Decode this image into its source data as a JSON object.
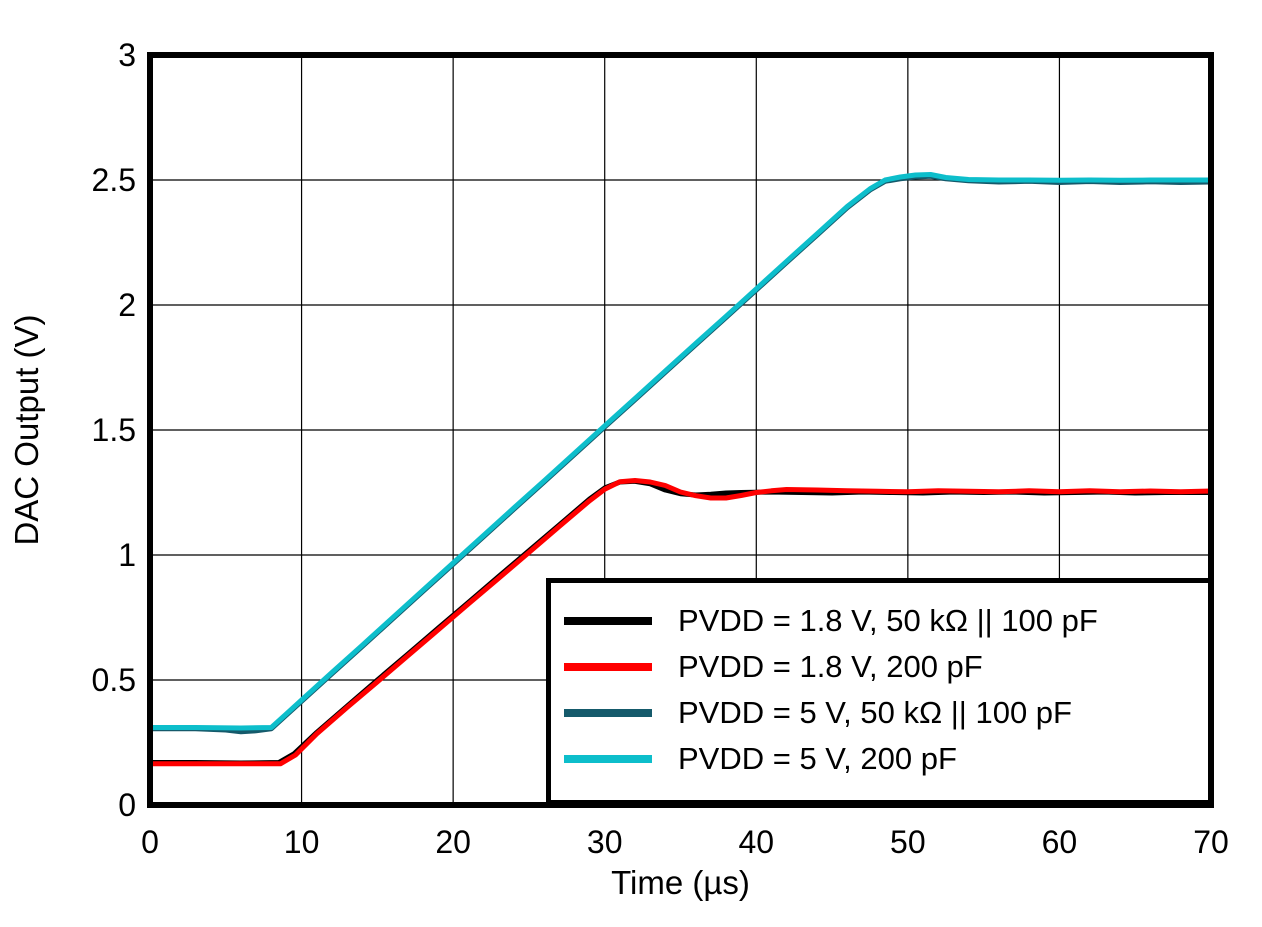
{
  "figure": {
    "background": "#ffffff",
    "frame_color": "#000000",
    "grid_color": "#000000"
  },
  "chart_data": {
    "type": "line",
    "title": "",
    "xlabel": "Time (µs)",
    "ylabel": "DAC Output (V)",
    "xlim": [
      0,
      70
    ],
    "ylim": [
      0,
      3
    ],
    "xticks": [
      0,
      10,
      20,
      30,
      40,
      50,
      60,
      70
    ],
    "xtick_labels": [
      "0",
      "10",
      "20",
      "30",
      "40",
      "50",
      "60",
      "70"
    ],
    "yticks": [
      0,
      0.5,
      1,
      1.5,
      2,
      2.5,
      3
    ],
    "ytick_labels": [
      "0",
      "0.5",
      "1",
      "1.5",
      "2",
      "2.5",
      "3"
    ],
    "grid": true,
    "legend_position": "inside-bottom-right",
    "series": [
      {
        "name": "PVDD = 1.8 V, 50 kΩ || 100 pF",
        "color": "#000000",
        "points": [
          [
            0,
            0.17
          ],
          [
            3,
            0.17
          ],
          [
            6,
            0.168
          ],
          [
            8.5,
            0.17
          ],
          [
            9.5,
            0.205
          ],
          [
            11,
            0.29
          ],
          [
            13,
            0.395
          ],
          [
            15,
            0.5
          ],
          [
            17,
            0.603
          ],
          [
            19,
            0.707
          ],
          [
            21,
            0.81
          ],
          [
            23,
            0.914
          ],
          [
            25,
            1.017
          ],
          [
            27,
            1.12
          ],
          [
            29,
            1.224
          ],
          [
            30,
            1.268
          ],
          [
            31,
            1.292
          ],
          [
            32,
            1.295
          ],
          [
            33,
            1.285
          ],
          [
            34,
            1.26
          ],
          [
            35,
            1.245
          ],
          [
            36,
            1.24
          ],
          [
            37,
            1.243
          ],
          [
            38,
            1.248
          ],
          [
            39,
            1.25
          ],
          [
            41,
            1.252
          ],
          [
            43,
            1.25
          ],
          [
            45,
            1.248
          ],
          [
            47,
            1.252
          ],
          [
            49,
            1.25
          ],
          [
            51,
            1.248
          ],
          [
            53,
            1.252
          ],
          [
            55,
            1.25
          ],
          [
            57,
            1.252
          ],
          [
            59,
            1.248
          ],
          [
            61,
            1.25
          ],
          [
            63,
            1.252
          ],
          [
            65,
            1.248
          ],
          [
            67,
            1.25
          ],
          [
            70,
            1.25
          ]
        ]
      },
      {
        "name": "PVDD = 1.8 V, 200 pF",
        "color": "#FF0000",
        "points": [
          [
            0,
            0.165
          ],
          [
            3,
            0.165
          ],
          [
            6,
            0.165
          ],
          [
            8.6,
            0.165
          ],
          [
            9.6,
            0.2
          ],
          [
            11,
            0.285
          ],
          [
            13,
            0.39
          ],
          [
            15,
            0.493
          ],
          [
            17,
            0.597
          ],
          [
            19,
            0.7
          ],
          [
            21,
            0.804
          ],
          [
            23,
            0.907
          ],
          [
            25,
            1.01
          ],
          [
            27,
            1.114
          ],
          [
            29,
            1.217
          ],
          [
            30,
            1.263
          ],
          [
            31,
            1.293
          ],
          [
            32,
            1.298
          ],
          [
            33,
            1.292
          ],
          [
            34,
            1.278
          ],
          [
            35,
            1.252
          ],
          [
            36,
            1.237
          ],
          [
            37,
            1.228
          ],
          [
            38,
            1.228
          ],
          [
            39,
            1.238
          ],
          [
            40,
            1.25
          ],
          [
            41,
            1.257
          ],
          [
            42,
            1.262
          ],
          [
            44,
            1.26
          ],
          [
            46,
            1.257
          ],
          [
            48,
            1.255
          ],
          [
            50,
            1.253
          ],
          [
            52,
            1.257
          ],
          [
            54,
            1.255
          ],
          [
            56,
            1.253
          ],
          [
            58,
            1.257
          ],
          [
            60,
            1.253
          ],
          [
            62,
            1.257
          ],
          [
            64,
            1.253
          ],
          [
            66,
            1.256
          ],
          [
            68,
            1.253
          ],
          [
            70,
            1.256
          ]
        ]
      },
      {
        "name": "PVDD = 5 V, 50 kΩ || 100 pF",
        "color": "#155A6B",
        "points": [
          [
            0,
            0.305
          ],
          [
            3,
            0.305
          ],
          [
            5,
            0.3
          ],
          [
            6,
            0.293
          ],
          [
            7,
            0.297
          ],
          [
            8,
            0.305
          ],
          [
            9,
            0.36
          ],
          [
            10,
            0.415
          ],
          [
            12,
            0.525
          ],
          [
            14,
            0.634
          ],
          [
            16,
            0.744
          ],
          [
            18,
            0.854
          ],
          [
            20,
            0.963
          ],
          [
            22,
            1.073
          ],
          [
            24,
            1.183
          ],
          [
            26,
            1.292
          ],
          [
            28,
            1.402
          ],
          [
            30,
            1.512
          ],
          [
            32,
            1.621
          ],
          [
            34,
            1.731
          ],
          [
            36,
            1.841
          ],
          [
            38,
            1.95
          ],
          [
            40,
            2.06
          ],
          [
            42,
            2.17
          ],
          [
            44,
            2.279
          ],
          [
            46,
            2.389
          ],
          [
            47.5,
            2.46
          ],
          [
            48.5,
            2.495
          ],
          [
            49.5,
            2.505
          ],
          [
            50.5,
            2.512
          ],
          [
            51.5,
            2.515
          ],
          [
            52.5,
            2.505
          ],
          [
            54,
            2.497
          ],
          [
            56,
            2.492
          ],
          [
            58,
            2.495
          ],
          [
            60,
            2.49
          ],
          [
            62,
            2.494
          ],
          [
            64,
            2.49
          ],
          [
            66,
            2.493
          ],
          [
            68,
            2.49
          ],
          [
            70,
            2.492
          ]
        ]
      },
      {
        "name": "PVDD = 5 V, 200 pF",
        "color": "#0DBECB",
        "points": [
          [
            0,
            0.31
          ],
          [
            3,
            0.31
          ],
          [
            6,
            0.308
          ],
          [
            8,
            0.31
          ],
          [
            9,
            0.365
          ],
          [
            10,
            0.42
          ],
          [
            12,
            0.53
          ],
          [
            14,
            0.639
          ],
          [
            16,
            0.749
          ],
          [
            18,
            0.859
          ],
          [
            20,
            0.968
          ],
          [
            22,
            1.078
          ],
          [
            24,
            1.188
          ],
          [
            26,
            1.297
          ],
          [
            28,
            1.407
          ],
          [
            30,
            1.517
          ],
          [
            32,
            1.626
          ],
          [
            34,
            1.736
          ],
          [
            36,
            1.846
          ],
          [
            38,
            1.955
          ],
          [
            40,
            2.065
          ],
          [
            42,
            2.175
          ],
          [
            44,
            2.284
          ],
          [
            46,
            2.394
          ],
          [
            47.5,
            2.465
          ],
          [
            48.5,
            2.5
          ],
          [
            49.5,
            2.512
          ],
          [
            50.5,
            2.52
          ],
          [
            51.5,
            2.522
          ],
          [
            52.5,
            2.51
          ],
          [
            54,
            2.502
          ],
          [
            56,
            2.5
          ],
          [
            58,
            2.5
          ],
          [
            60,
            2.499
          ],
          [
            62,
            2.5
          ],
          [
            64,
            2.499
          ],
          [
            66,
            2.5
          ],
          [
            68,
            2.5
          ],
          [
            70,
            2.5
          ]
        ]
      }
    ]
  }
}
